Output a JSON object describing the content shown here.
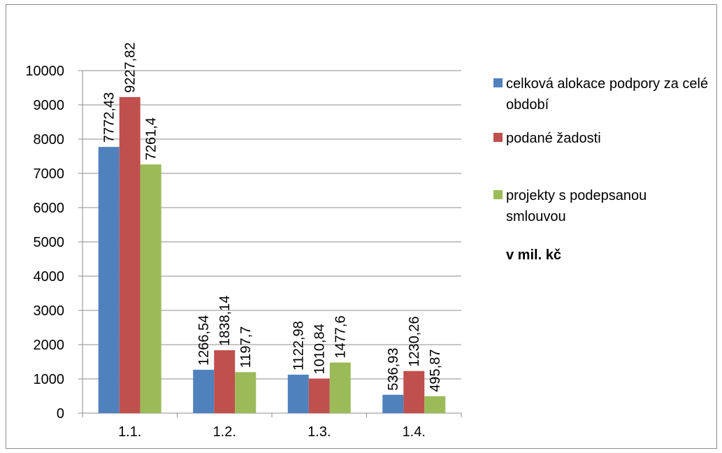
{
  "chart_data": {
    "type": "bar",
    "categories": [
      "1.1.",
      "1.2.",
      "1.3.",
      "1.4."
    ],
    "series": [
      {
        "name": "celková alokace podpory za celé období",
        "values": [
          7772.43,
          1266.54,
          1122.98,
          536.93
        ],
        "labels": [
          "7772,43",
          "1266,54",
          "1122,98",
          "536,93"
        ],
        "color": "#4f81bd"
      },
      {
        "name": "podané žadosti",
        "values": [
          9227.82,
          1838.14,
          1010.84,
          1230.26
        ],
        "labels": [
          "9227,82",
          "1838,14",
          "1010,84",
          "1230,26"
        ],
        "color": "#c0504d"
      },
      {
        "name": "projekty s podepsanou smlouvou",
        "values": [
          7261.4,
          1197.7,
          1477.6,
          495.87
        ],
        "labels": [
          "7261,4",
          "1197,7",
          "1477,6",
          "495,87"
        ],
        "color": "#9bbb59"
      }
    ],
    "ylim": [
      0,
      10000
    ],
    "yticks": [
      0,
      1000,
      2000,
      3000,
      4000,
      5000,
      6000,
      7000,
      8000,
      9000,
      10000
    ],
    "grid": true,
    "legend_position": "right",
    "unit_note": "v mil. kč"
  }
}
